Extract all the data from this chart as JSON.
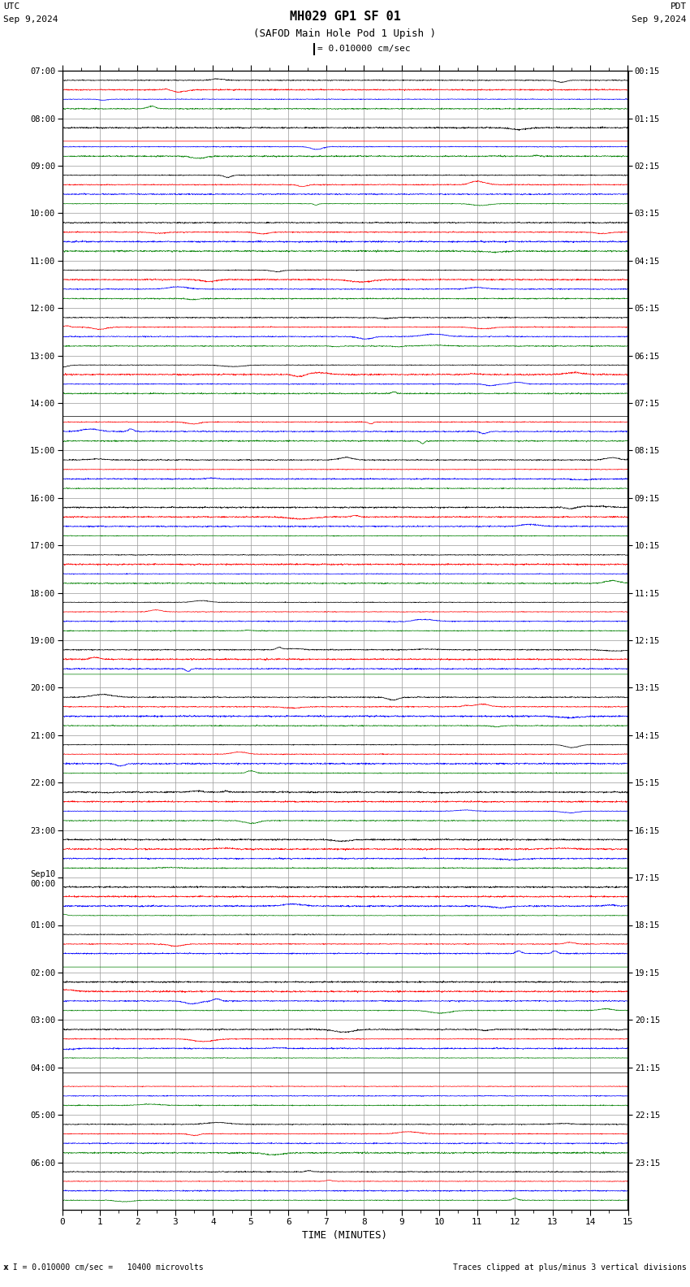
{
  "title_line1": "MH029 GP1 SF 01",
  "title_line2": "(SAFOD Main Hole Pod 1 Upish )",
  "scale_text": "= 0.010000 cm/sec",
  "left_label": "UTC",
  "left_date": "Sep 9,2024",
  "right_label": "PDT",
  "right_date": "Sep 9,2024",
  "xlabel": "TIME (MINUTES)",
  "bottom_left_text": "x I = 0.010000 cm/sec =   10400 microvolts",
  "bottom_right_text": "Traces clipped at plus/minus 3 vertical divisions",
  "utc_times": [
    "07:00",
    "08:00",
    "09:00",
    "10:00",
    "11:00",
    "12:00",
    "13:00",
    "14:00",
    "15:00",
    "16:00",
    "17:00",
    "18:00",
    "19:00",
    "20:00",
    "21:00",
    "22:00",
    "23:00",
    "Sep10\n00:00",
    "01:00",
    "02:00",
    "03:00",
    "04:00",
    "05:00",
    "06:00"
  ],
  "pdt_times": [
    "00:15",
    "01:15",
    "02:15",
    "03:15",
    "04:15",
    "05:15",
    "06:15",
    "07:15",
    "08:15",
    "09:15",
    "10:15",
    "11:15",
    "12:15",
    "13:15",
    "14:15",
    "15:15",
    "16:15",
    "17:15",
    "18:15",
    "19:15",
    "20:15",
    "21:15",
    "22:15",
    "23:15"
  ],
  "n_rows": 24,
  "n_channels": 4,
  "colors": [
    "black",
    "red",
    "blue",
    "green"
  ],
  "bg_color": "white",
  "xmin": 0,
  "xmax": 15,
  "grid_color": "#999999",
  "font_name": "monospace"
}
